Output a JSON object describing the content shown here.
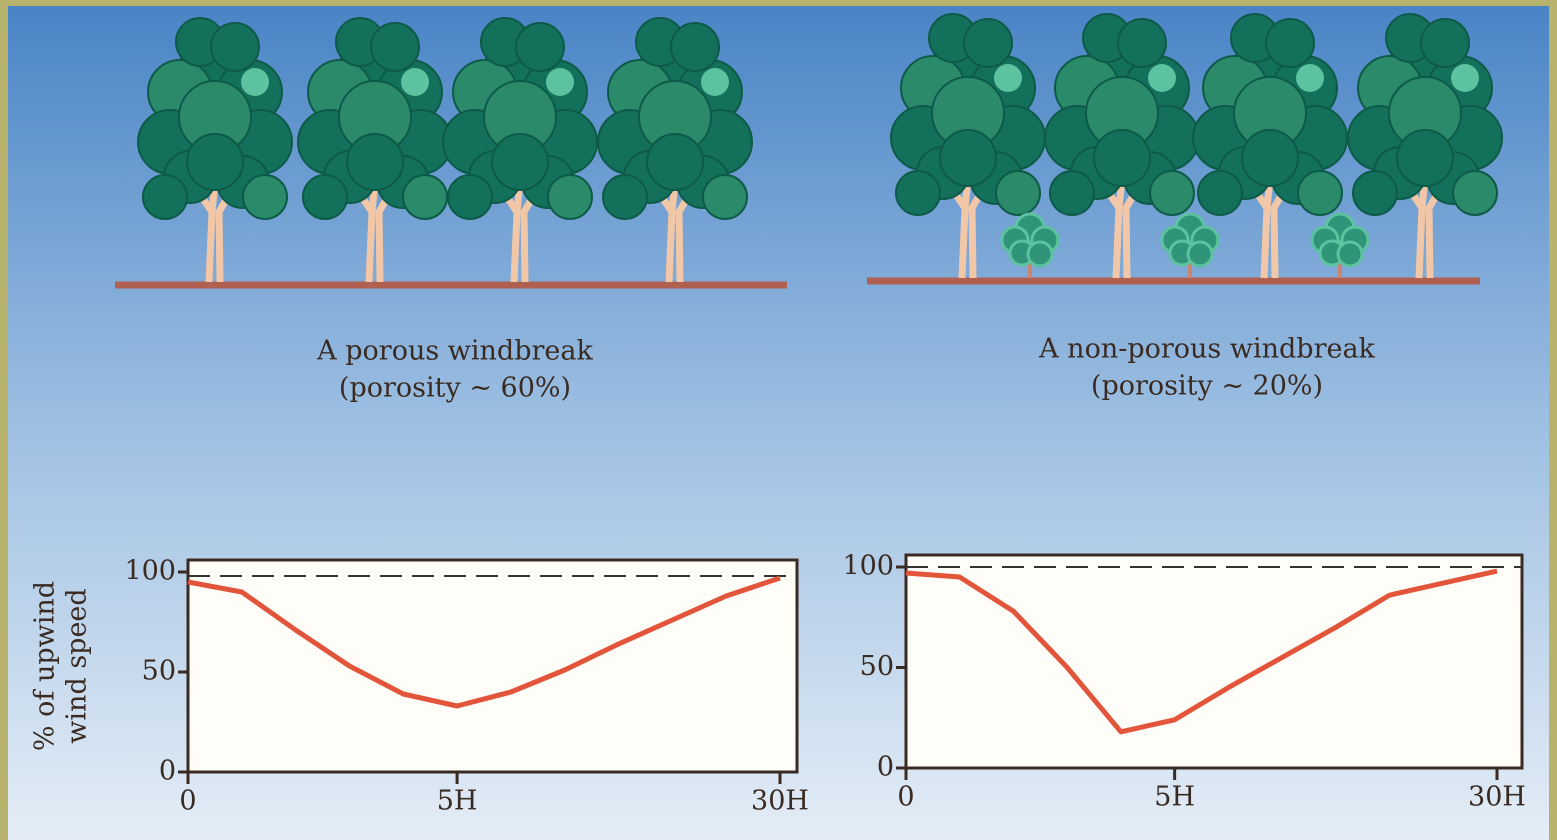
{
  "chart_data": [
    {
      "type": "line",
      "title": [
        "A porous windbreak",
        "(porosity ~ 60%)"
      ],
      "ylabel": [
        "% of upwind",
        "wind speed"
      ],
      "categories": [
        "0",
        null,
        null,
        null,
        null,
        "5H",
        null,
        null,
        null,
        null,
        null,
        "30H"
      ],
      "series": [
        {
          "color": "#e2553a",
          "values": [
            95,
            90,
            71,
            53,
            39,
            33,
            40,
            51,
            64,
            76,
            88,
            97
          ]
        }
      ],
      "reference_line": 98,
      "ylim": [
        0,
        100
      ],
      "yticks": [
        0,
        50,
        100
      ],
      "grid": false
    },
    {
      "type": "line",
      "title": [
        "A non-porous windbreak",
        "(porosity ~ 20%)"
      ],
      "categories": [
        "0",
        null,
        null,
        null,
        null,
        "5H",
        null,
        null,
        null,
        null,
        null,
        "30H"
      ],
      "series": [
        {
          "color": "#e2553a",
          "values": [
            97,
            95,
            78,
            50,
            18,
            24,
            40,
            55,
            70,
            86,
            92,
            98
          ]
        }
      ],
      "reference_line": 100,
      "ylim": [
        0,
        100
      ],
      "yticks": [
        0,
        50,
        100
      ],
      "grid": false
    }
  ]
}
